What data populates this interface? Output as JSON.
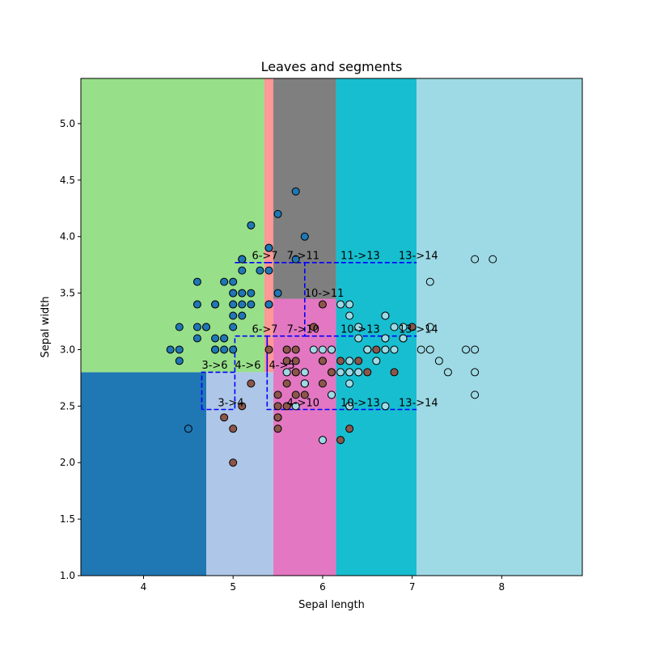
{
  "chart_data": {
    "type": "scatter",
    "title": "Leaves and segments",
    "xlabel": "Sepal length",
    "ylabel": "Sepal width",
    "xlim": [
      3.3,
      8.9
    ],
    "ylim": [
      1.0,
      5.4
    ],
    "xticks": [
      4,
      5,
      6,
      7,
      8
    ],
    "xtick_labels": [
      "4",
      "5",
      "6",
      "7",
      "8"
    ],
    "yticks": [
      1.0,
      1.5,
      2.0,
      2.5,
      3.0,
      3.5,
      4.0,
      4.5,
      5.0
    ],
    "ytick_labels": [
      "1.0",
      "1.5",
      "2.0",
      "2.5",
      "3.0",
      "3.5",
      "4.0",
      "4.5",
      "5.0"
    ],
    "grid": false,
    "regions": [
      {
        "x": [
          3.3,
          4.7
        ],
        "y": [
          1.0,
          2.8
        ],
        "color": "#1f77b4"
      },
      {
        "x": [
          3.3,
          5.35
        ],
        "y": [
          2.8,
          5.4
        ],
        "color": "#98df8a"
      },
      {
        "x": [
          4.7,
          5.45
        ],
        "y": [
          1.0,
          2.8
        ],
        "color": "#aec7e8"
      },
      {
        "x": [
          5.35,
          5.45
        ],
        "y": [
          2.8,
          5.4
        ],
        "color": "#ff9896"
      },
      {
        "x": [
          5.45,
          6.15
        ],
        "y": [
          1.0,
          3.45
        ],
        "color": "#e377c2"
      },
      {
        "x": [
          5.45,
          6.15
        ],
        "y": [
          3.45,
          5.4
        ],
        "color": "#7f7f7f"
      },
      {
        "x": [
          6.15,
          7.05
        ],
        "y": [
          1.0,
          5.4
        ],
        "color": "#17becf"
      },
      {
        "x": [
          7.05,
          8.9
        ],
        "y": [
          1.0,
          5.4
        ],
        "color": "#9edae5"
      }
    ],
    "segments": [
      {
        "points": [
          [
            4.65,
            2.47
          ],
          [
            4.65,
            2.8
          ],
          [
            5.02,
            2.8
          ],
          [
            5.02,
            2.47
          ],
          [
            4.65,
            2.47
          ]
        ]
      },
      {
        "points": [
          [
            5.02,
            2.8
          ],
          [
            5.02,
            3.12
          ],
          [
            5.38,
            3.12
          ],
          [
            5.38,
            2.8
          ]
        ]
      },
      {
        "points": [
          [
            5.02,
            3.77
          ],
          [
            5.38,
            3.77
          ]
        ]
      },
      {
        "points": [
          [
            5.38,
            3.77
          ],
          [
            5.8,
            3.77
          ],
          [
            5.8,
            3.12
          ],
          [
            5.38,
            3.12
          ]
        ]
      },
      {
        "points": [
          [
            5.8,
            3.77
          ],
          [
            7.05,
            3.77
          ]
        ]
      },
      {
        "points": [
          [
            5.8,
            3.12
          ],
          [
            7.05,
            3.12
          ]
        ]
      },
      {
        "points": [
          [
            5.38,
            3.12
          ],
          [
            5.38,
            2.47
          ],
          [
            7.05,
            2.47
          ]
        ]
      }
    ],
    "segment_labels": [
      {
        "text": "6->7",
        "x": 5.21,
        "y": 3.8
      },
      {
        "text": "7->11",
        "x": 5.6,
        "y": 3.8
      },
      {
        "text": "11->13",
        "x": 6.2,
        "y": 3.8
      },
      {
        "text": "13->14",
        "x": 6.85,
        "y": 3.8
      },
      {
        "text": "10->11",
        "x": 5.8,
        "y": 3.47
      },
      {
        "text": "6->7",
        "x": 5.21,
        "y": 3.15
      },
      {
        "text": "7->10",
        "x": 5.6,
        "y": 3.15
      },
      {
        "text": "10->13",
        "x": 6.2,
        "y": 3.15
      },
      {
        "text": "13->14",
        "x": 6.85,
        "y": 3.15
      },
      {
        "text": "3->6",
        "x": 4.65,
        "y": 2.83
      },
      {
        "text": "4->6",
        "x": 5.02,
        "y": 2.83
      },
      {
        "text": "4->5",
        "x": 5.4,
        "y": 2.83
      },
      {
        "text": "3->4",
        "x": 4.83,
        "y": 2.5
      },
      {
        "text": "4->10",
        "x": 5.6,
        "y": 2.5
      },
      {
        "text": "10->13",
        "x": 6.2,
        "y": 2.5
      },
      {
        "text": "13->14",
        "x": 6.85,
        "y": 2.5
      }
    ],
    "series": [
      {
        "color": "#1f77b4",
        "x": [
          5.1,
          4.9,
          4.7,
          4.6,
          5.0,
          5.4,
          4.6,
          5.0,
          4.4,
          4.9,
          5.4,
          4.8,
          4.8,
          4.3,
          5.8,
          5.7,
          5.4,
          5.1,
          5.7,
          5.1,
          5.4,
          5.1,
          4.6,
          5.1,
          4.8,
          5.0,
          5.0,
          5.2,
          5.2,
          4.7,
          4.8,
          5.4,
          5.2,
          5.5,
          4.9,
          5.0,
          5.5,
          4.9,
          4.4,
          5.1,
          5.0,
          4.5,
          4.4,
          5.0,
          5.1,
          4.8,
          5.1,
          4.6,
          5.3,
          5.0
        ],
        "y": [
          3.5,
          3.0,
          3.2,
          3.1,
          3.6,
          3.9,
          3.4,
          3.4,
          2.9,
          3.1,
          3.7,
          3.4,
          3.0,
          3.0,
          4.0,
          4.4,
          3.9,
          3.5,
          3.8,
          3.8,
          3.4,
          3.7,
          3.6,
          3.3,
          3.4,
          3.0,
          3.4,
          3.5,
          3.4,
          3.2,
          3.1,
          3.4,
          4.1,
          4.2,
          3.1,
          3.2,
          3.5,
          3.6,
          3.0,
          3.4,
          3.5,
          2.3,
          3.2,
          3.5,
          3.8,
          3.0,
          3.8,
          3.2,
          3.7,
          3.3
        ]
      },
      {
        "color": "#8c564b",
        "x": [
          5.5,
          5.7,
          4.9,
          5.2,
          5.0,
          5.6,
          5.6,
          5.8,
          6.2,
          5.6,
          6.1,
          6.3,
          6.6,
          6.0,
          5.7,
          5.5,
          5.5,
          5.8,
          6.0,
          5.4,
          6.0,
          6.3,
          5.6,
          5.5,
          5.5,
          6.1,
          5.8,
          5.0,
          5.6,
          5.7,
          5.7,
          5.1,
          5.7,
          5.8,
          6.2,
          5.6,
          5.9,
          6.4,
          6.5,
          6.8,
          6.7,
          6.0,
          6.3,
          6.1,
          6.3,
          6.1,
          6.0,
          6.5,
          6.9,
          7.0
        ],
        "y": [
          2.3,
          2.8,
          2.4,
          2.7,
          2.0,
          2.9,
          3.0,
          2.7,
          2.2,
          2.5,
          2.8,
          2.5,
          3.0,
          2.9,
          2.6,
          2.4,
          2.4,
          2.7,
          2.7,
          3.0,
          3.4,
          2.3,
          3.0,
          2.5,
          2.6,
          3.0,
          2.6,
          2.3,
          2.7,
          3.0,
          2.9,
          2.5,
          2.8,
          2.8,
          2.9,
          2.8,
          3.2,
          2.9,
          2.8,
          2.8,
          3.1,
          2.9,
          2.9,
          2.8,
          2.8,
          2.6,
          2.2,
          3.0,
          3.1,
          3.2
        ]
      },
      {
        "color": "#9edae5",
        "x": [
          6.3,
          5.8,
          7.1,
          6.3,
          6.5,
          7.6,
          7.3,
          6.7,
          7.2,
          6.4,
          6.8,
          5.7,
          5.8,
          6.4,
          6.5,
          7.7,
          7.7,
          6.0,
          6.9,
          5.6,
          7.7,
          6.3,
          6.7,
          7.2,
          6.2,
          6.1,
          6.4,
          7.2,
          7.4,
          7.9,
          6.4,
          6.3,
          6.1,
          7.7,
          6.3,
          6.4,
          6.0,
          6.9,
          6.7,
          6.9,
          6.8,
          6.7,
          6.7,
          6.3,
          6.5,
          6.2,
          5.9,
          6.6,
          5.8,
          6.7
        ],
        "y": [
          3.3,
          2.7,
          3.0,
          2.9,
          3.0,
          3.0,
          2.9,
          2.5,
          3.6,
          3.2,
          3.0,
          2.5,
          2.8,
          3.2,
          3.0,
          3.8,
          2.6,
          2.2,
          3.2,
          2.8,
          2.8,
          2.7,
          3.3,
          3.2,
          2.8,
          3.0,
          2.8,
          3.0,
          2.8,
          3.8,
          2.8,
          2.8,
          2.6,
          3.0,
          3.4,
          3.1,
          3.0,
          3.1,
          3.1,
          3.1,
          3.2,
          3.3,
          3.0,
          2.5,
          3.0,
          3.4,
          3.0,
          2.9,
          2.7,
          3.0
        ]
      }
    ],
    "point_edge_color": "#000000",
    "segment_color": "#0000ff"
  }
}
